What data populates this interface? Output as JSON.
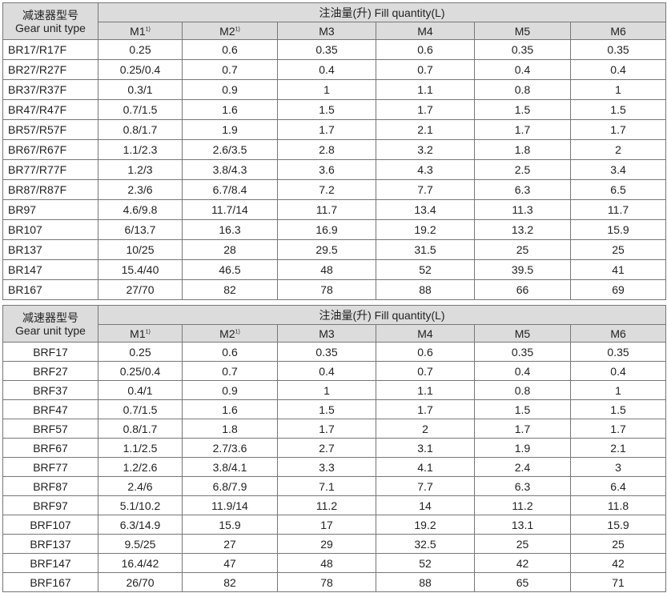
{
  "tables": [
    {
      "type_header_cn": "减速器型号",
      "type_header_en": "Gear unit type",
      "fill_header": "注油量(升) Fill quantity(L)",
      "columns": [
        "M1",
        "M2",
        "M3",
        "M4",
        "M5",
        "M6"
      ],
      "footnote_mark": "1)",
      "rows": [
        [
          "BR17/R17F",
          "0.25",
          "0.6",
          "0.35",
          "0.6",
          "0.35",
          "0.35"
        ],
        [
          "BR27/R27F",
          "0.25/0.4",
          "0.7",
          "0.4",
          "0.7",
          "0.4",
          "0.4"
        ],
        [
          "BR37/R37F",
          "0.3/1",
          "0.9",
          "1",
          "1.1",
          "0.8",
          "1"
        ],
        [
          "BR47/R47F",
          "0.7/1.5",
          "1.6",
          "1.5",
          "1.7",
          "1.5",
          "1.5"
        ],
        [
          "BR57/R57F",
          "0.8/1.7",
          "1.9",
          "1.7",
          "2.1",
          "1.7",
          "1.7"
        ],
        [
          "BR67/R67F",
          "1.1/2.3",
          "2.6/3.5",
          "2.8",
          "3.2",
          "1.8",
          "2"
        ],
        [
          "BR77/R77F",
          "1.2/3",
          "3.8/4.3",
          "3.6",
          "4.3",
          "2.5",
          "3.4"
        ],
        [
          "BR87/R87F",
          "2.3/6",
          "6.7/8.4",
          "7.2",
          "7.7",
          "6.3",
          "6.5"
        ],
        [
          "BR97",
          "4.6/9.8",
          "11.7/14",
          "11.7",
          "13.4",
          "11.3",
          "11.7"
        ],
        [
          "BR107",
          "6/13.7",
          "16.3",
          "16.9",
          "19.2",
          "13.2",
          "15.9"
        ],
        [
          "BR137",
          "10/25",
          "28",
          "29.5",
          "31.5",
          "25",
          "25"
        ],
        [
          "BR147",
          "15.4/40",
          "46.5",
          "48",
          "52",
          "39.5",
          "41"
        ],
        [
          "BR167",
          "27/70",
          "82",
          "78",
          "88",
          "66",
          "69"
        ]
      ]
    },
    {
      "type_header_cn": "减速器型号",
      "type_header_en": "Gear unit type",
      "fill_header": "注油量(升) Fill quantity(L)",
      "columns": [
        "M1",
        "M2",
        "M3",
        "M4",
        "M5",
        "M6"
      ],
      "footnote_mark": "1)",
      "rows": [
        [
          "BRF17",
          "0.25",
          "0.6",
          "0.35",
          "0.6",
          "0.35",
          "0.35"
        ],
        [
          "BRF27",
          "0.25/0.4",
          "0.7",
          "0.4",
          "0.7",
          "0.4",
          "0.4"
        ],
        [
          "BRF37",
          "0.4/1",
          "0.9",
          "1",
          "1.1",
          "0.8",
          "1"
        ],
        [
          "BRF47",
          "0.7/1.5",
          "1.6",
          "1.5",
          "1.7",
          "1.5",
          "1.5"
        ],
        [
          "BRF57",
          "0.8/1.7",
          "1.8",
          "1.7",
          "2",
          "1.7",
          "1.7"
        ],
        [
          "BRF67",
          "1.1/2.5",
          "2.7/3.6",
          "2.7",
          "3.1",
          "1.9",
          "2.1"
        ],
        [
          "BRF77",
          "1.2/2.6",
          "3.8/4.1",
          "3.3",
          "4.1",
          "2.4",
          "3"
        ],
        [
          "BRF87",
          "2.4/6",
          "6.8/7.9",
          "7.1",
          "7.7",
          "6.3",
          "6.4"
        ],
        [
          "BRF97",
          "5.1/10.2",
          "11.9/14",
          "11.2",
          "14",
          "11.2",
          "11.8"
        ],
        [
          "BRF107",
          "6.3/14.9",
          "15.9",
          "17",
          "19.2",
          "13.1",
          "15.9"
        ],
        [
          "BRF137",
          "9.5/25",
          "27",
          "29",
          "32.5",
          "25",
          "25"
        ],
        [
          "BRF147",
          "16.4/42",
          "47",
          "48",
          "52",
          "42",
          "42"
        ],
        [
          "BRF167",
          "26/70",
          "82",
          "78",
          "88",
          "65",
          "71"
        ]
      ]
    }
  ]
}
